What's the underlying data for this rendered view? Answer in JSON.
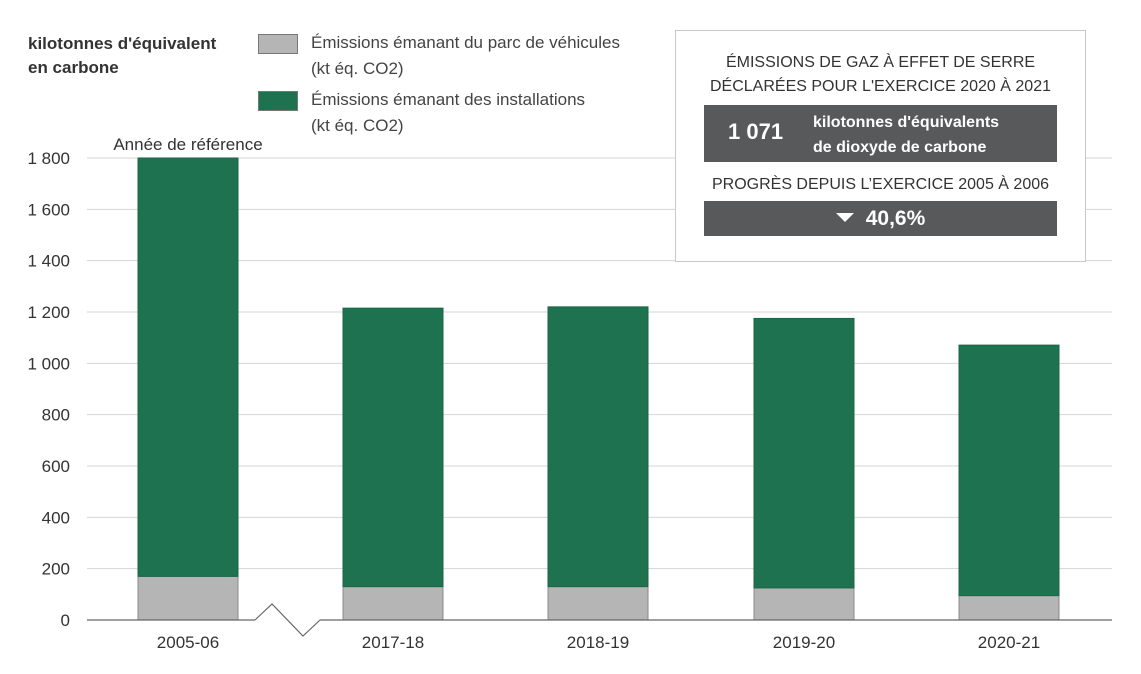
{
  "chart_data": {
    "type": "bar",
    "stacked": true,
    "ylabel": "kilotonnes d'équivalent en carbone",
    "ylim": [
      0,
      1800
    ],
    "yticks": [
      0,
      200,
      400,
      600,
      800,
      1000,
      1200,
      1400,
      1600,
      1800
    ],
    "ytick_labels": [
      "0",
      "200",
      "400",
      "600",
      "800",
      "1 000",
      "1 200",
      "1 400",
      "1 600",
      "1 800"
    ],
    "categories": [
      "2005-06",
      "2017-18",
      "2018-19",
      "2019-20",
      "2020-21"
    ],
    "series": [
      {
        "name": "Émissions émanant du parc de véhicules (kt éq. CO2)",
        "color": "#b5b5b5",
        "values": [
          170,
          130,
          130,
          125,
          95
        ]
      },
      {
        "name": "Émissions émanant des installations (kt éq. CO2)",
        "color": "#1e7250",
        "values": [
          1630,
          1085,
          1090,
          1050,
          976
        ]
      }
    ],
    "annotations": [
      {
        "category": "2005-06",
        "text": "Année de référence"
      }
    ],
    "grid": true,
    "axis_break_after": "2005-06",
    "legend_position": "top"
  },
  "legend": {
    "items": [
      {
        "line1": "Émissions émanant du parc de véhicules",
        "line2": "(kt éq. CO2)",
        "color": "#b5b5b5"
      },
      {
        "line1": "Émissions émanant des installations",
        "line2": "(kt éq. CO2)",
        "color": "#1e7250"
      }
    ]
  },
  "ylabel": {
    "line1": "kilotonnes d'équivalent",
    "line2": "en carbone"
  },
  "summary": {
    "heading_line1": "ÉMISSIONS DE GAZ À EFFET DE SERRE",
    "heading_line2": "DÉCLARÉES POUR L'EXERCICE 2020 À 2021",
    "total_value": "1 071",
    "total_unit_line1": "kilotonnes d'équivalents",
    "total_unit_line2": "de dioxyde de carbone",
    "progress_heading": "PROGRÈS DEPUIS L’EXERCICE 2005 À 2006",
    "progress_value": "40,6%",
    "progress_direction": "down"
  }
}
